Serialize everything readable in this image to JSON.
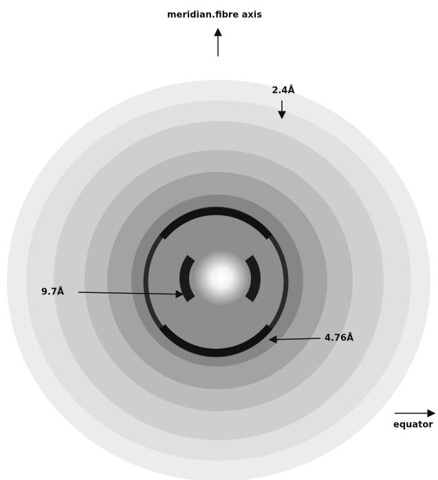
{
  "annotations": {
    "meridian": "meridian.fibre axis",
    "ring_2_4": "2.4Å",
    "ring_9_7": "9.7Å",
    "ring_4_76": "4.76Å",
    "equator": "equator"
  }
}
